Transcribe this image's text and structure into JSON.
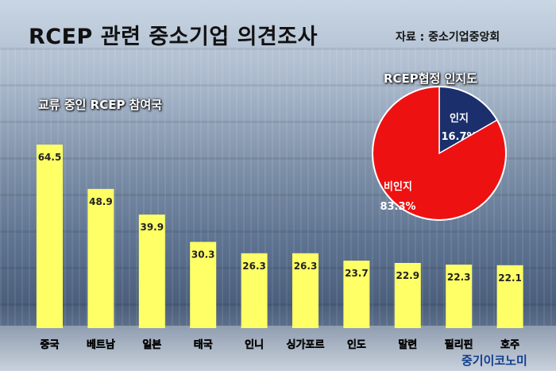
{
  "title": "RCEP 관련 중소기업 의견조사",
  "source": "자료 : 중소기업중앙회",
  "logo": "중기이코노미",
  "chart_data": [
    {
      "type": "bar",
      "title": "교류 중인 RCEP 참여국",
      "categories": [
        "중국",
        "베트남",
        "일본",
        "태국",
        "인니",
        "싱가포르",
        "인도",
        "말련",
        "필리핀",
        "호주"
      ],
      "values": [
        64.5,
        48.9,
        39.9,
        30.3,
        26.3,
        26.3,
        23.7,
        22.9,
        22.3,
        22.1
      ],
      "value_labels": [
        "64.5",
        "48.9",
        "39.9",
        "30.3",
        "26.3",
        "26.3",
        "23.7",
        "22.9",
        "22.3",
        "22.1"
      ],
      "ylim": [
        0,
        64.5
      ],
      "bar_color": "#ffff66",
      "grid": false
    },
    {
      "type": "pie",
      "title": "RCEP협정 인지도",
      "slices": [
        {
          "label": "인지",
          "value": 16.7,
          "value_label": "16.7%",
          "color": "#1a2f6b"
        },
        {
          "label": "비인지",
          "value": 83.3,
          "value_label": "83.3%",
          "color": "#ee1111"
        }
      ]
    }
  ]
}
